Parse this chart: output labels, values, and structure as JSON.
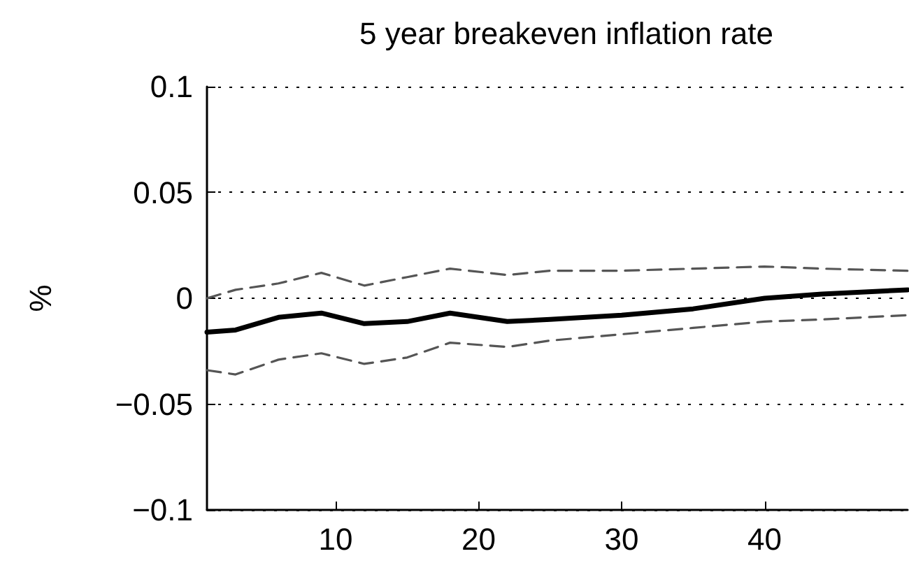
{
  "chart_data": {
    "type": "line",
    "title": "5 year breakeven inflation rate",
    "ylabel": "%",
    "x": [
      1,
      3,
      6,
      9,
      12,
      15,
      18,
      22,
      25,
      30,
      35,
      40,
      44,
      50
    ],
    "series": [
      {
        "color": "#000000",
        "line_style": "solid",
        "values": [
          -0.016,
          -0.015,
          -0.009,
          -0.007,
          -0.012,
          -0.011,
          -0.007,
          -0.011,
          -0.01,
          -0.008,
          -0.005,
          0.0,
          0.002,
          0.004
        ]
      },
      {
        "color": "#555555",
        "line_style": "dashed",
        "values": [
          0.0,
          0.004,
          0.007,
          0.012,
          0.006,
          0.01,
          0.014,
          0.011,
          0.013,
          0.013,
          0.014,
          0.015,
          0.014,
          0.013
        ]
      },
      {
        "color": "#555555",
        "line_style": "dashed",
        "values": [
          -0.034,
          -0.036,
          -0.029,
          -0.026,
          -0.031,
          -0.028,
          -0.021,
          -0.023,
          -0.02,
          -0.017,
          -0.014,
          -0.011,
          -0.01,
          -0.008
        ]
      }
    ],
    "xlim": [
      1,
      50
    ],
    "xticks": [
      10,
      20,
      30,
      40
    ],
    "ylim": [
      -0.1,
      0.1
    ],
    "yticks": [
      {
        "value": -0.1,
        "label": "−0.1"
      },
      {
        "value": -0.05,
        "label": "−0.05"
      },
      0,
      0.05,
      0.1
    ],
    "grid": "y",
    "marker": "none"
  }
}
